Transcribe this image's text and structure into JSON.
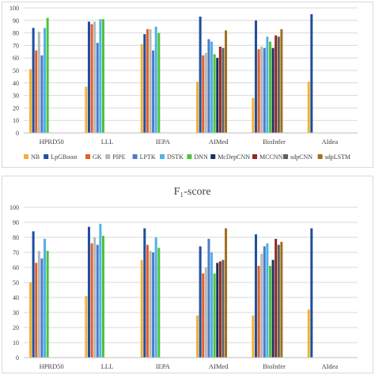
{
  "legend": [
    {
      "name": "NB",
      "color": "#F2B134"
    },
    {
      "name": "LpGBoost",
      "color": "#1F4E9E"
    },
    {
      "name": "GK",
      "color": "#E2602A"
    },
    {
      "name": "PIPE",
      "color": "#B8B8B8"
    },
    {
      "name": "LPTK",
      "color": "#4A7CC9"
    },
    {
      "name": "DSTK",
      "color": "#4FB3E6"
    },
    {
      "name": "DNN",
      "color": "#4CC43A"
    },
    {
      "name": "McDepCNN",
      "color": "#1C2F5E"
    },
    {
      "name": "MCCNN",
      "color": "#8E2A1E"
    },
    {
      "name": "sdpCNN",
      "color": "#5E5E5E"
    },
    {
      "name": "sdpLSTM",
      "color": "#A0701C"
    }
  ],
  "chart_data": [
    {
      "type": "bar",
      "title": "",
      "xlabel": "",
      "ylabel": "",
      "ylim": [
        0,
        100
      ],
      "yticks": [
        0,
        10,
        20,
        30,
        40,
        50,
        60,
        70,
        80,
        90,
        100
      ],
      "grid": true,
      "legend_position": "bottom",
      "categories": [
        "HPRD50",
        "LLL",
        "IEPA",
        "AIMed",
        "BioInfer",
        "AIdea"
      ],
      "series": [
        {
          "name": "NB",
          "values": [
            51,
            37,
            71,
            41,
            28,
            41
          ]
        },
        {
          "name": "LpGBoost",
          "values": [
            84,
            89,
            79,
            93,
            90,
            95
          ]
        },
        {
          "name": "GK",
          "values": [
            66,
            87,
            83,
            62,
            67,
            null
          ]
        },
        {
          "name": "PIPE",
          "values": [
            81,
            89,
            83,
            64,
            69,
            null
          ]
        },
        {
          "name": "LPTK",
          "values": [
            62,
            72,
            66,
            75,
            68,
            null
          ]
        },
        {
          "name": "DSTK",
          "values": [
            84,
            91,
            85,
            73,
            77,
            null
          ]
        },
        {
          "name": "DNN",
          "values": [
            92,
            91,
            80,
            63,
            73,
            null
          ]
        },
        {
          "name": "McDepCNN",
          "values": [
            null,
            null,
            null,
            60,
            68,
            null
          ]
        },
        {
          "name": "MCCNN",
          "values": [
            null,
            null,
            null,
            69,
            78,
            null
          ]
        },
        {
          "name": "sdpCNN",
          "values": [
            null,
            null,
            null,
            68,
            77,
            null
          ]
        },
        {
          "name": "sdpLSTM",
          "values": [
            null,
            null,
            null,
            82,
            83,
            null
          ]
        }
      ]
    },
    {
      "type": "bar",
      "title": "F₁-score",
      "xlabel": "",
      "ylabel": "",
      "ylim": [
        0,
        100
      ],
      "yticks": [
        0,
        10,
        20,
        30,
        40,
        50,
        60,
        70,
        80,
        90,
        100
      ],
      "grid": true,
      "categories": [
        "HPRD50",
        "LLL",
        "IEPA",
        "AIMed",
        "BioInfer",
        "AIdea"
      ],
      "series": [
        {
          "name": "NB",
          "values": [
            50,
            41,
            65,
            28,
            28,
            32
          ]
        },
        {
          "name": "LpGBoost",
          "values": [
            84,
            87,
            86,
            74,
            82,
            86
          ]
        },
        {
          "name": "GK",
          "values": [
            63,
            76,
            75,
            56,
            61,
            null
          ]
        },
        {
          "name": "PIPE",
          "values": [
            71,
            80,
            71,
            60,
            69,
            null
          ]
        },
        {
          "name": "LPTK",
          "values": [
            66,
            75,
            70,
            79,
            74,
            null
          ]
        },
        {
          "name": "DSTK",
          "values": [
            79,
            89,
            80,
            70,
            76,
            null
          ]
        },
        {
          "name": "DNN",
          "values": [
            71,
            81,
            73,
            56,
            61,
            null
          ]
        },
        {
          "name": "McDepCNN",
          "values": [
            null,
            null,
            null,
            63,
            65,
            null
          ]
        },
        {
          "name": "MCCNN",
          "values": [
            null,
            null,
            null,
            64,
            79,
            null
          ]
        },
        {
          "name": "sdpCNN",
          "values": [
            null,
            null,
            null,
            65,
            75,
            null
          ]
        },
        {
          "name": "sdpLSTM",
          "values": [
            null,
            null,
            null,
            86,
            77,
            null
          ]
        }
      ]
    }
  ]
}
